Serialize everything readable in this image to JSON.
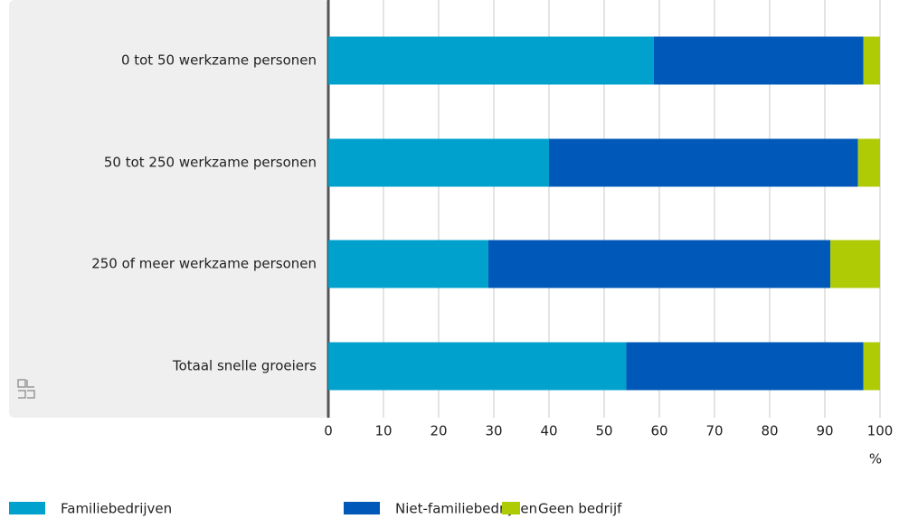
{
  "chart_data": {
    "type": "stacked-bar-horizontal",
    "categories": [
      "0 tot 50 werkzame personen",
      "50 tot 250 werkzame personen",
      "250 of meer werkzame personen",
      "Totaal snelle groeiers"
    ],
    "series": [
      {
        "name": "Familiebedrijven",
        "color": "#00a1cd",
        "values": [
          59,
          40,
          29,
          54
        ]
      },
      {
        "name": "Niet-familiebedrijven",
        "color": "#0058b8",
        "values": [
          38,
          56,
          62,
          43
        ]
      },
      {
        "name": "Geen bedrijf",
        "color": "#afcb05",
        "values": [
          3,
          4,
          9,
          3
        ]
      }
    ],
    "xlim": [
      0,
      100
    ],
    "xticks": [
      0,
      10,
      20,
      30,
      40,
      50,
      60,
      70,
      80,
      90,
      100
    ],
    "x_unit": "%",
    "grid": true
  }
}
